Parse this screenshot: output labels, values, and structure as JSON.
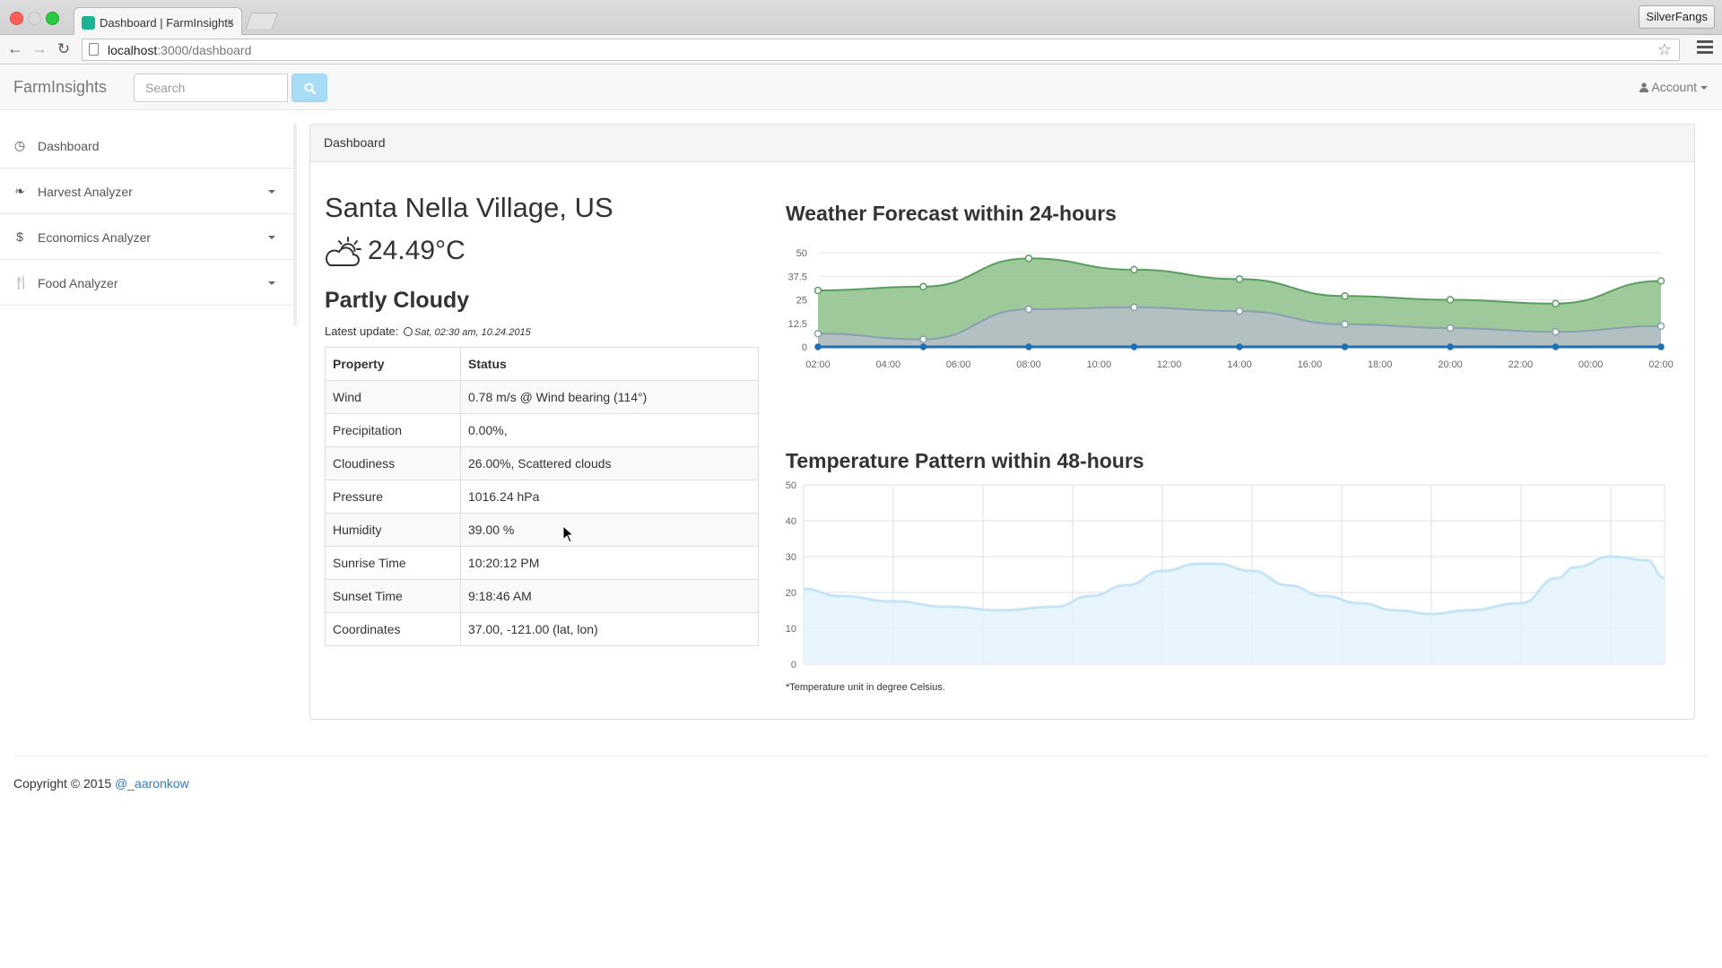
{
  "browser": {
    "tab_title": "Dashboard | FarmInsights",
    "tab_close": "×",
    "profile": "SilverFangs",
    "url_host": "localhost",
    "url_path": ":3000/dashboard",
    "icons": {
      "back": "arrow-left",
      "forward": "arrow-right",
      "reload": "reload",
      "star": "star",
      "menu": "hamburger"
    }
  },
  "navbar": {
    "brand": "FarmInsights",
    "search_placeholder": "Search",
    "account_label": "Account",
    "search_button_color": "#a8dcf5"
  },
  "sidebar": {
    "items": [
      {
        "label": "Dashboard",
        "icon": "dashboard-icon",
        "glyph": "◷",
        "has_caret": false
      },
      {
        "label": "Harvest Analyzer",
        "icon": "leaf-icon",
        "glyph": "❧",
        "has_caret": true
      },
      {
        "label": "Economics Analyzer",
        "icon": "dollar-icon",
        "glyph": "$",
        "has_caret": true
      },
      {
        "label": "Food Analyzer",
        "icon": "cutlery-icon",
        "glyph": "🍴",
        "has_caret": true
      }
    ]
  },
  "panel": {
    "heading": "Dashboard",
    "city": "Santa Nella Village, US",
    "temperature": "24.49°C",
    "condition": "Partly Cloudy",
    "update_label": "Latest update:",
    "update_time": "Sat, 02:30 am, 10.24.2015",
    "table": {
      "headers": [
        "Property",
        "Status"
      ],
      "rows": [
        [
          "Wind",
          "0.78 m/s @ Wind bearing (114°)"
        ],
        [
          "Precipitation",
          "0.00%,"
        ],
        [
          "Cloudiness",
          "26.00%, Scattered clouds"
        ],
        [
          "Pressure",
          "1016.24 hPa"
        ],
        [
          "Humidity",
          "39.00 %"
        ],
        [
          "Sunrise Time",
          "10:20:12 PM"
        ],
        [
          "Sunset Time",
          "9:18:46 AM"
        ],
        [
          "Coordinates",
          "37.00, -121.00 (lat, lon)"
        ]
      ]
    },
    "footnote": "*Temperature unit in degree Celsius."
  },
  "chart_data": [
    {
      "type": "area",
      "title": "Weather Forecast within 24-hours",
      "x_ticks": [
        "02:00",
        "04:00",
        "06:00",
        "08:00",
        "10:00",
        "12:00",
        "14:00",
        "16:00",
        "18:00",
        "20:00",
        "22:00",
        "00:00",
        "02:00"
      ],
      "y_ticks": [
        "0",
        "12.5",
        "25",
        "37.5",
        "50"
      ],
      "ylim": [
        0,
        50
      ],
      "x_hours": [
        0,
        3,
        6,
        9,
        12,
        15,
        18,
        21,
        24
      ],
      "xlim": [
        0,
        24
      ],
      "series": [
        {
          "color": "#5a9e5d",
          "fill": "#8cbf8a",
          "values": [
            30,
            32,
            47,
            41,
            36,
            27,
            25,
            23,
            35
          ]
        },
        {
          "color": "#8a9fb0",
          "fill": "#b6bec9",
          "values": [
            7,
            4,
            20,
            21,
            19,
            12,
            10,
            8,
            11
          ]
        },
        {
          "color": "#1f6fb5",
          "fill": "#1f6fb5",
          "values": [
            0,
            0,
            0,
            0,
            0,
            0,
            0,
            0,
            0
          ]
        }
      ]
    },
    {
      "type": "area",
      "title": "Temperature Pattern within 48-hours",
      "y_ticks": [
        "0",
        "10",
        "20",
        "30",
        "40",
        "50"
      ],
      "ylim": [
        0,
        50
      ],
      "xlim": [
        0,
        48
      ],
      "grid": true,
      "series": [
        {
          "color": "#c5e5f7",
          "fill": "#e3f3fc",
          "x": [
            0,
            2,
            5,
            8,
            11,
            14,
            16,
            18,
            20,
            22,
            23,
            25,
            27,
            29,
            31,
            33,
            35,
            37,
            40,
            42,
            43,
            45,
            47,
            48
          ],
          "values": [
            21,
            19,
            17.5,
            16,
            15,
            16,
            19,
            22,
            26,
            28,
            28,
            26,
            22,
            19,
            17,
            15,
            14,
            15,
            17,
            24,
            27,
            30,
            29,
            24
          ]
        }
      ]
    }
  ]
}
